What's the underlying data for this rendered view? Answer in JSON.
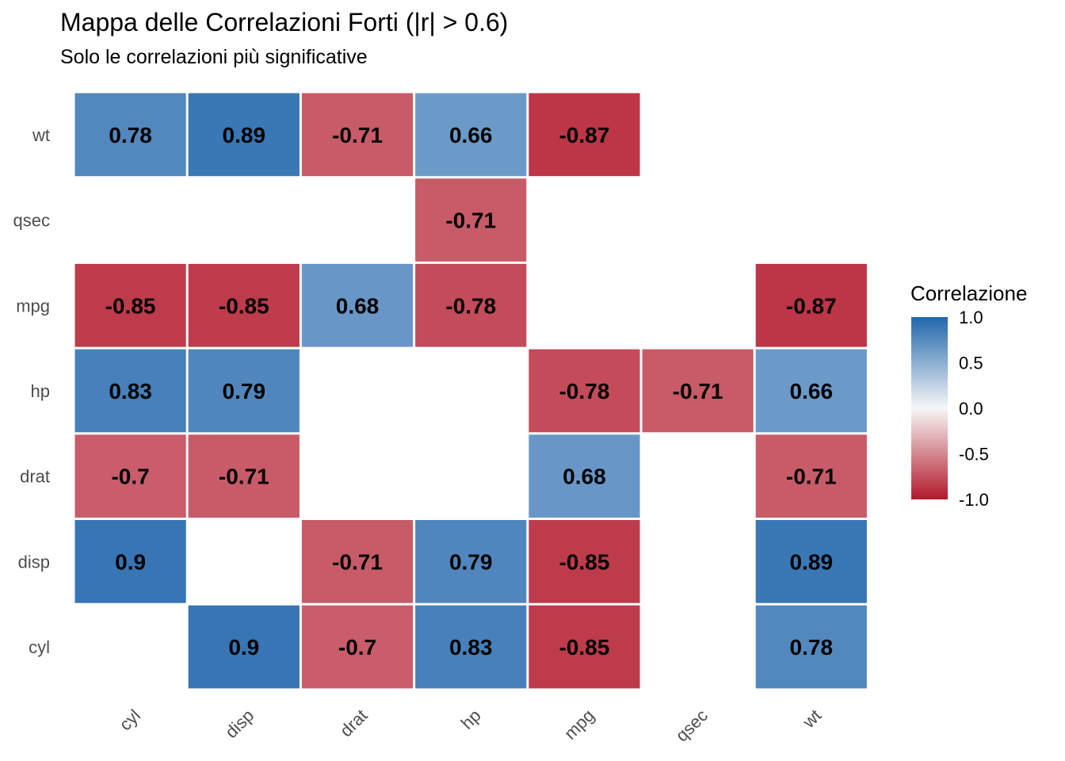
{
  "chart_data": {
    "type": "heatmap",
    "title": "Mappa delle Correlazioni Forti (|r| > 0.6)",
    "subtitle": "Solo le correlazioni più significative",
    "x_categories": [
      "cyl",
      "disp",
      "drat",
      "hp",
      "mpg",
      "qsec",
      "wt"
    ],
    "y_categories": [
      "cyl",
      "disp",
      "drat",
      "hp",
      "mpg",
      "qsec",
      "wt"
    ],
    "cells": [
      {
        "x": "cyl",
        "y": "wt",
        "value": 0.78
      },
      {
        "x": "disp",
        "y": "wt",
        "value": 0.89
      },
      {
        "x": "drat",
        "y": "wt",
        "value": -0.71
      },
      {
        "x": "hp",
        "y": "wt",
        "value": 0.66
      },
      {
        "x": "mpg",
        "y": "wt",
        "value": -0.87
      },
      {
        "x": "hp",
        "y": "qsec",
        "value": -0.71
      },
      {
        "x": "cyl",
        "y": "mpg",
        "value": -0.85
      },
      {
        "x": "disp",
        "y": "mpg",
        "value": -0.85
      },
      {
        "x": "drat",
        "y": "mpg",
        "value": 0.68
      },
      {
        "x": "hp",
        "y": "mpg",
        "value": -0.78
      },
      {
        "x": "wt",
        "y": "mpg",
        "value": -0.87
      },
      {
        "x": "cyl",
        "y": "hp",
        "value": 0.83
      },
      {
        "x": "disp",
        "y": "hp",
        "value": 0.79
      },
      {
        "x": "mpg",
        "y": "hp",
        "value": -0.78
      },
      {
        "x": "qsec",
        "y": "hp",
        "value": -0.71
      },
      {
        "x": "wt",
        "y": "hp",
        "value": 0.66
      },
      {
        "x": "cyl",
        "y": "drat",
        "value": -0.7
      },
      {
        "x": "disp",
        "y": "drat",
        "value": -0.71
      },
      {
        "x": "mpg",
        "y": "drat",
        "value": 0.68
      },
      {
        "x": "wt",
        "y": "drat",
        "value": -0.71
      },
      {
        "x": "cyl",
        "y": "disp",
        "value": 0.9
      },
      {
        "x": "drat",
        "y": "disp",
        "value": -0.71
      },
      {
        "x": "hp",
        "y": "disp",
        "value": 0.79
      },
      {
        "x": "mpg",
        "y": "disp",
        "value": -0.85
      },
      {
        "x": "wt",
        "y": "disp",
        "value": 0.89
      },
      {
        "x": "disp",
        "y": "cyl",
        "value": 0.9
      },
      {
        "x": "drat",
        "y": "cyl",
        "value": -0.7
      },
      {
        "x": "hp",
        "y": "cyl",
        "value": 0.83
      },
      {
        "x": "mpg",
        "y": "cyl",
        "value": -0.85
      },
      {
        "x": "wt",
        "y": "cyl",
        "value": 0.78
      }
    ],
    "legend": {
      "title": "Correlazione",
      "position": "right",
      "ticks": [
        {
          "value": 1.0,
          "label": "1.0"
        },
        {
          "value": 0.5,
          "label": "0.5"
        },
        {
          "value": 0.0,
          "label": "0.0"
        },
        {
          "value": -0.5,
          "label": "-0.5"
        },
        {
          "value": -1.0,
          "label": "-1.0"
        }
      ]
    },
    "color_scale": {
      "low": "#b2182b",
      "mid": "#ffffff",
      "high": "#2166ac",
      "limits": [
        -1,
        1
      ]
    },
    "grid": false
  }
}
